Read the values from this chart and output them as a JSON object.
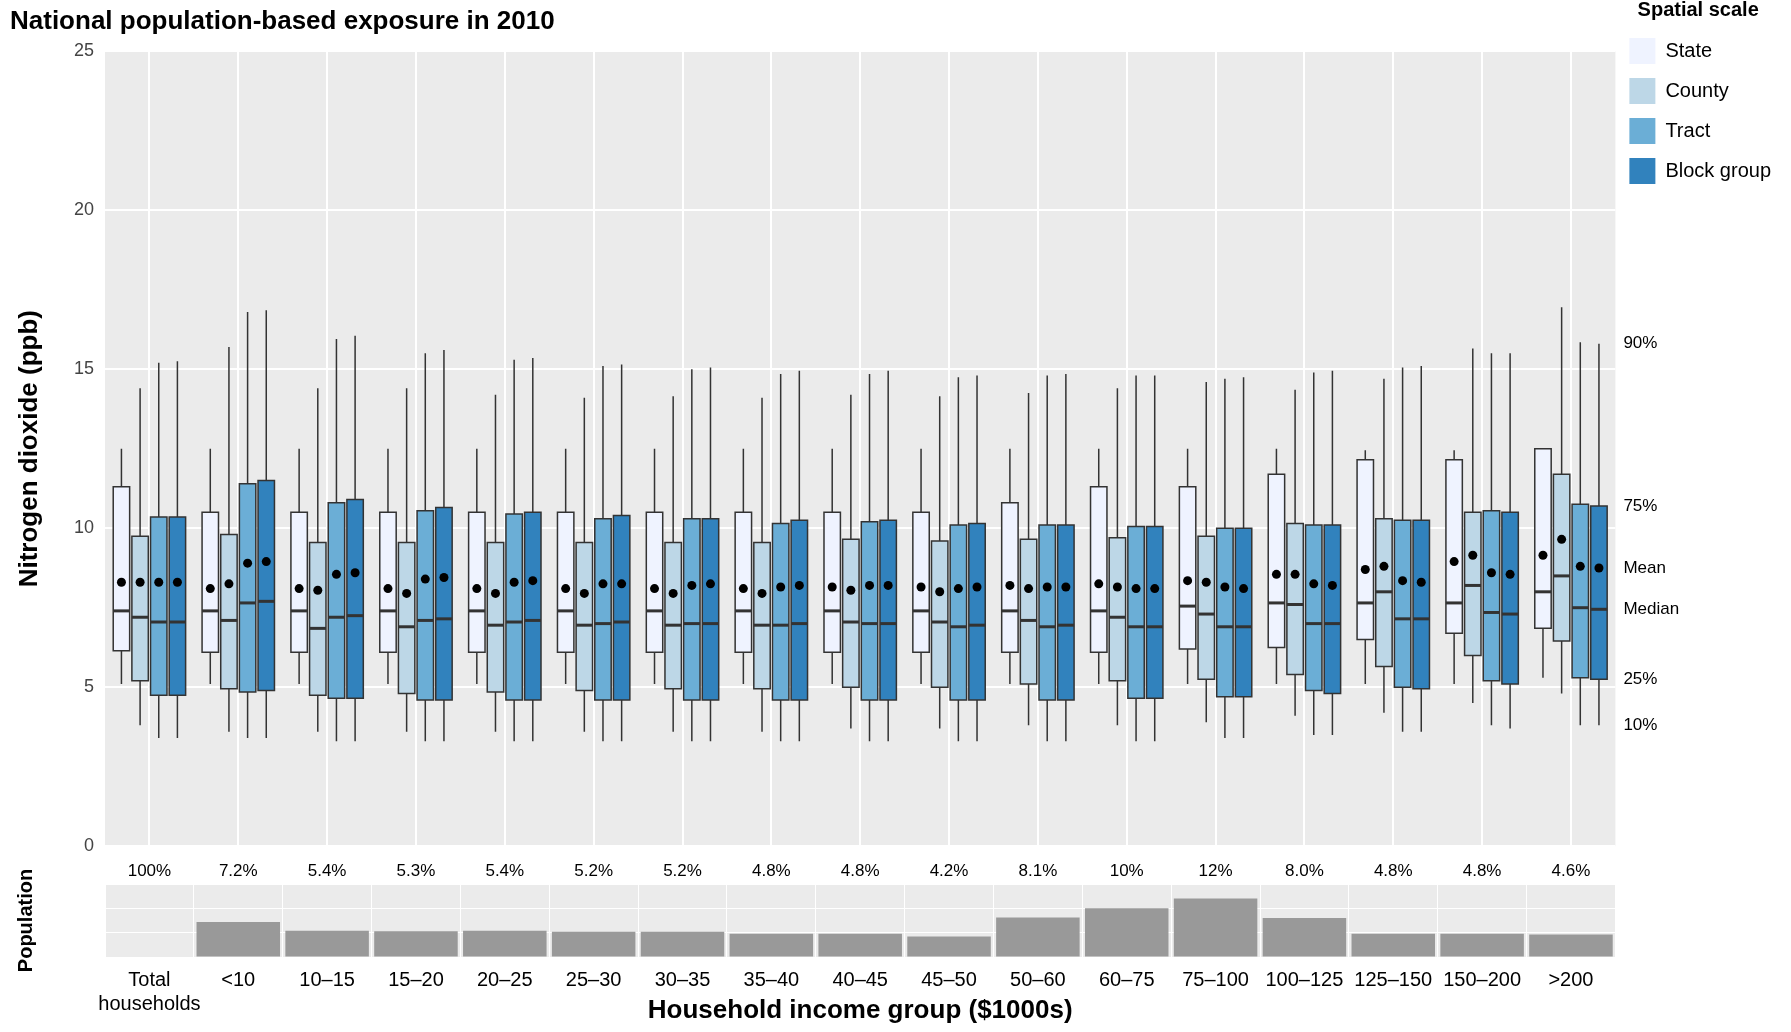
{
  "chart_data": [
    {
      "type": "box",
      "title": "National population-based exposure in 2010",
      "ylabel": "Nitrogen dioxide (ppb)",
      "legend_title": "Spatial scale",
      "legend": "top right",
      "grid": true,
      "tick_labels": "y",
      "categories": [
        null,
        null,
        null,
        null,
        null,
        null,
        null,
        null,
        null,
        null,
        null,
        null,
        null,
        null,
        null,
        null,
        null
      ],
      "ylim": [
        0,
        25
      ],
      "yticks": [
        0,
        5,
        10,
        15,
        20,
        25
      ],
      "annotations": [
        "90%",
        "75%",
        "Mean",
        "Median",
        "25%",
        "10%"
      ],
      "series": [
        {
          "name": "State",
          "color": "#eff3ff",
          "boxes": [
            {
              "low": 5.1,
              "q1": 6.15,
              "median": 7.4,
              "q3": 11.3,
              "high": 12.5,
              "mean": 8.3
            },
            {
              "low": 5.1,
              "q1": 6.1,
              "median": 7.4,
              "q3": 10.5,
              "high": 12.5,
              "mean": 8.1
            },
            {
              "low": 5.1,
              "q1": 6.1,
              "median": 7.4,
              "q3": 10.5,
              "high": 12.5,
              "mean": 8.1
            },
            {
              "low": 5.1,
              "q1": 6.1,
              "median": 7.4,
              "q3": 10.5,
              "high": 12.5,
              "mean": 8.1
            },
            {
              "low": 5.1,
              "q1": 6.1,
              "median": 7.4,
              "q3": 10.5,
              "high": 12.5,
              "mean": 8.1
            },
            {
              "low": 5.1,
              "q1": 6.1,
              "median": 7.4,
              "q3": 10.5,
              "high": 12.5,
              "mean": 8.1
            },
            {
              "low": 5.1,
              "q1": 6.1,
              "median": 7.4,
              "q3": 10.5,
              "high": 12.5,
              "mean": 8.1
            },
            {
              "low": 5.1,
              "q1": 6.1,
              "median": 7.4,
              "q3": 10.5,
              "high": 12.5,
              "mean": 8.1
            },
            {
              "low": 5.1,
              "q1": 6.1,
              "median": 7.4,
              "q3": 10.5,
              "high": 12.5,
              "mean": 8.15
            },
            {
              "low": 5.1,
              "q1": 6.1,
              "median": 7.4,
              "q3": 10.5,
              "high": 12.5,
              "mean": 8.15
            },
            {
              "low": 5.1,
              "q1": 6.1,
              "median": 7.4,
              "q3": 10.8,
              "high": 12.5,
              "mean": 8.2
            },
            {
              "low": 5.1,
              "q1": 6.1,
              "median": 7.4,
              "q3": 11.3,
              "high": 12.5,
              "mean": 8.25
            },
            {
              "low": 5.1,
              "q1": 6.2,
              "median": 7.55,
              "q3": 11.3,
              "high": 12.5,
              "mean": 8.35
            },
            {
              "low": 5.1,
              "q1": 6.25,
              "median": 7.65,
              "q3": 11.7,
              "high": 12.5,
              "mean": 8.55
            },
            {
              "low": 5.1,
              "q1": 6.5,
              "median": 7.65,
              "q3": 12.15,
              "high": 12.45,
              "mean": 8.7
            },
            {
              "low": 5.1,
              "q1": 6.7,
              "median": 7.65,
              "q3": 12.15,
              "high": 12.45,
              "mean": 8.95
            },
            {
              "low": 5.3,
              "q1": 6.85,
              "median": 8.0,
              "q3": 12.5,
              "high": 12.5,
              "mean": 9.15
            }
          ]
        },
        {
          "name": "County",
          "color": "#bdd7e7",
          "boxes": [
            {
              "low": 3.8,
              "q1": 5.2,
              "median": 7.2,
              "q3": 9.75,
              "high": 14.4,
              "mean": 8.3
            },
            {
              "low": 3.6,
              "q1": 4.95,
              "median": 7.1,
              "q3": 9.8,
              "high": 15.7,
              "mean": 8.25
            },
            {
              "low": 3.6,
              "q1": 4.75,
              "median": 6.85,
              "q3": 9.55,
              "high": 14.4,
              "mean": 8.05
            },
            {
              "low": 3.6,
              "q1": 4.8,
              "median": 6.9,
              "q3": 9.55,
              "high": 14.4,
              "mean": 7.95
            },
            {
              "low": 3.6,
              "q1": 4.85,
              "median": 6.95,
              "q3": 9.55,
              "high": 14.2,
              "mean": 7.95
            },
            {
              "low": 3.6,
              "q1": 4.9,
              "median": 6.95,
              "q3": 9.55,
              "high": 14.1,
              "mean": 7.95
            },
            {
              "low": 3.6,
              "q1": 4.95,
              "median": 6.95,
              "q3": 9.55,
              "high": 14.15,
              "mean": 7.95
            },
            {
              "low": 3.6,
              "q1": 4.95,
              "median": 6.95,
              "q3": 9.55,
              "high": 14.1,
              "mean": 7.95
            },
            {
              "low": 3.7,
              "q1": 5.0,
              "median": 7.05,
              "q3": 9.65,
              "high": 14.2,
              "mean": 8.05
            },
            {
              "low": 3.7,
              "q1": 5.0,
              "median": 7.05,
              "q3": 9.6,
              "high": 14.15,
              "mean": 8.0
            },
            {
              "low": 3.8,
              "q1": 5.1,
              "median": 7.1,
              "q3": 9.65,
              "high": 14.25,
              "mean": 8.1
            },
            {
              "low": 3.8,
              "q1": 5.2,
              "median": 7.2,
              "q3": 9.7,
              "high": 14.4,
              "mean": 8.15
            },
            {
              "low": 3.9,
              "q1": 5.25,
              "median": 7.3,
              "q3": 9.75,
              "high": 14.6,
              "mean": 8.3
            },
            {
              "low": 4.1,
              "q1": 5.4,
              "median": 7.6,
              "q3": 10.15,
              "high": 14.35,
              "mean": 8.55
            },
            {
              "low": 4.2,
              "q1": 5.65,
              "median": 8.0,
              "q3": 10.3,
              "high": 14.7,
              "mean": 8.8
            },
            {
              "low": 4.5,
              "q1": 6.0,
              "median": 8.2,
              "q3": 10.5,
              "high": 15.65,
              "mean": 9.15
            },
            {
              "low": 4.8,
              "q1": 6.45,
              "median": 8.5,
              "q3": 11.7,
              "high": 16.95,
              "mean": 9.65
            }
          ]
        },
        {
          "name": "Tract",
          "color": "#6baed6",
          "boxes": [
            {
              "low": 3.4,
              "q1": 4.75,
              "median": 7.05,
              "q3": 10.35,
              "high": 15.2,
              "mean": 8.3
            },
            {
              "low": 3.4,
              "q1": 4.85,
              "median": 7.65,
              "q3": 11.4,
              "high": 16.8,
              "mean": 8.9
            },
            {
              "low": 3.3,
              "q1": 4.65,
              "median": 7.2,
              "q3": 10.8,
              "high": 15.95,
              "mean": 8.55
            },
            {
              "low": 3.3,
              "q1": 4.6,
              "median": 7.1,
              "q3": 10.55,
              "high": 15.5,
              "mean": 8.4
            },
            {
              "low": 3.3,
              "q1": 4.6,
              "median": 7.05,
              "q3": 10.45,
              "high": 15.3,
              "mean": 8.3
            },
            {
              "low": 3.3,
              "q1": 4.6,
              "median": 7.0,
              "q3": 10.3,
              "high": 15.1,
              "mean": 8.25
            },
            {
              "low": 3.3,
              "q1": 4.6,
              "median": 7.0,
              "q3": 10.3,
              "high": 15.0,
              "mean": 8.2
            },
            {
              "low": 3.3,
              "q1": 4.6,
              "median": 6.95,
              "q3": 10.15,
              "high": 14.85,
              "mean": 8.15
            },
            {
              "low": 3.3,
              "q1": 4.6,
              "median": 7.0,
              "q3": 10.2,
              "high": 14.85,
              "mean": 8.2
            },
            {
              "low": 3.3,
              "q1": 4.6,
              "median": 6.9,
              "q3": 10.1,
              "high": 14.75,
              "mean": 8.1
            },
            {
              "low": 3.3,
              "q1": 4.6,
              "median": 6.9,
              "q3": 10.1,
              "high": 14.8,
              "mean": 8.15
            },
            {
              "low": 3.3,
              "q1": 4.65,
              "median": 6.9,
              "q3": 10.05,
              "high": 14.8,
              "mean": 8.1
            },
            {
              "low": 3.4,
              "q1": 4.7,
              "median": 6.9,
              "q3": 10.0,
              "high": 14.7,
              "mean": 8.15
            },
            {
              "low": 3.5,
              "q1": 4.9,
              "median": 7.0,
              "q3": 10.1,
              "high": 14.9,
              "mean": 8.25
            },
            {
              "low": 3.6,
              "q1": 5.0,
              "median": 7.15,
              "q3": 10.25,
              "high": 15.05,
              "mean": 8.35
            },
            {
              "low": 3.8,
              "q1": 5.2,
              "median": 7.35,
              "q3": 10.55,
              "high": 15.5,
              "mean": 8.6
            },
            {
              "low": 3.8,
              "q1": 5.3,
              "median": 7.5,
              "q3": 10.75,
              "high": 15.85,
              "mean": 8.8
            }
          ]
        },
        {
          "name": "Block group",
          "color": "#3182bd",
          "boxes": [
            {
              "low": 3.4,
              "q1": 4.75,
              "median": 7.05,
              "q3": 10.35,
              "high": 15.25,
              "mean": 8.3
            },
            {
              "low": 3.4,
              "q1": 4.9,
              "median": 7.7,
              "q3": 11.5,
              "high": 16.85,
              "mean": 8.95
            },
            {
              "low": 3.3,
              "q1": 4.65,
              "median": 7.25,
              "q3": 10.9,
              "high": 16.05,
              "mean": 8.6
            },
            {
              "low": 3.3,
              "q1": 4.6,
              "median": 7.15,
              "q3": 10.65,
              "high": 15.6,
              "mean": 8.45
            },
            {
              "low": 3.3,
              "q1": 4.6,
              "median": 7.1,
              "q3": 10.5,
              "high": 15.35,
              "mean": 8.35
            },
            {
              "low": 3.3,
              "q1": 4.6,
              "median": 7.05,
              "q3": 10.4,
              "high": 15.15,
              "mean": 8.25
            },
            {
              "low": 3.3,
              "q1": 4.6,
              "median": 7.0,
              "q3": 10.3,
              "high": 15.05,
              "mean": 8.25
            },
            {
              "low": 3.3,
              "q1": 4.6,
              "median": 7.0,
              "q3": 10.25,
              "high": 14.95,
              "mean": 8.2
            },
            {
              "low": 3.3,
              "q1": 4.6,
              "median": 7.0,
              "q3": 10.25,
              "high": 14.95,
              "mean": 8.2
            },
            {
              "low": 3.3,
              "q1": 4.6,
              "median": 6.95,
              "q3": 10.15,
              "high": 14.8,
              "mean": 8.15
            },
            {
              "low": 3.3,
              "q1": 4.6,
              "median": 6.95,
              "q3": 10.1,
              "high": 14.85,
              "mean": 8.15
            },
            {
              "low": 3.3,
              "q1": 4.65,
              "median": 6.9,
              "q3": 10.05,
              "high": 14.8,
              "mean": 8.1
            },
            {
              "low": 3.4,
              "q1": 4.7,
              "median": 6.9,
              "q3": 10.0,
              "high": 14.75,
              "mean": 8.1
            },
            {
              "low": 3.5,
              "q1": 4.8,
              "median": 7.0,
              "q3": 10.1,
              "high": 14.95,
              "mean": 8.2
            },
            {
              "low": 3.6,
              "q1": 4.95,
              "median": 7.15,
              "q3": 10.25,
              "high": 15.1,
              "mean": 8.3
            },
            {
              "low": 3.7,
              "q1": 5.1,
              "median": 7.3,
              "q3": 10.5,
              "high": 15.5,
              "mean": 8.55
            },
            {
              "low": 3.8,
              "q1": 5.25,
              "median": 7.45,
              "q3": 10.7,
              "high": 15.8,
              "mean": 8.75
            }
          ]
        }
      ]
    },
    {
      "type": "bar",
      "ylabel": "Population",
      "xlabel": "Household income group ($1000s)",
      "grid": true,
      "tick_labels": "x",
      "color": "#999999",
      "categories": [
        "Total households",
        "<10",
        "10–15",
        "15–20",
        "20–25",
        "25–30",
        "30–35",
        "35–40",
        "40–45",
        "45–50",
        "50–60",
        "60–75",
        "75–100",
        "100–125",
        "125–150",
        "150–200",
        ">200"
      ],
      "values": [
        null,
        7.2,
        5.4,
        5.3,
        5.4,
        5.2,
        5.2,
        4.8,
        4.8,
        4.2,
        8.1,
        10,
        12,
        8.0,
        4.8,
        4.8,
        4.6
      ],
      "value_labels": [
        "100%",
        "7.2%",
        "5.4%",
        "5.3%",
        "5.4%",
        "5.2%",
        "5.2%",
        "4.8%",
        "4.8%",
        "4.2%",
        "8.1%",
        "10%",
        "12%",
        "8.0%",
        "4.8%",
        "4.8%",
        "4.6%"
      ]
    }
  ]
}
